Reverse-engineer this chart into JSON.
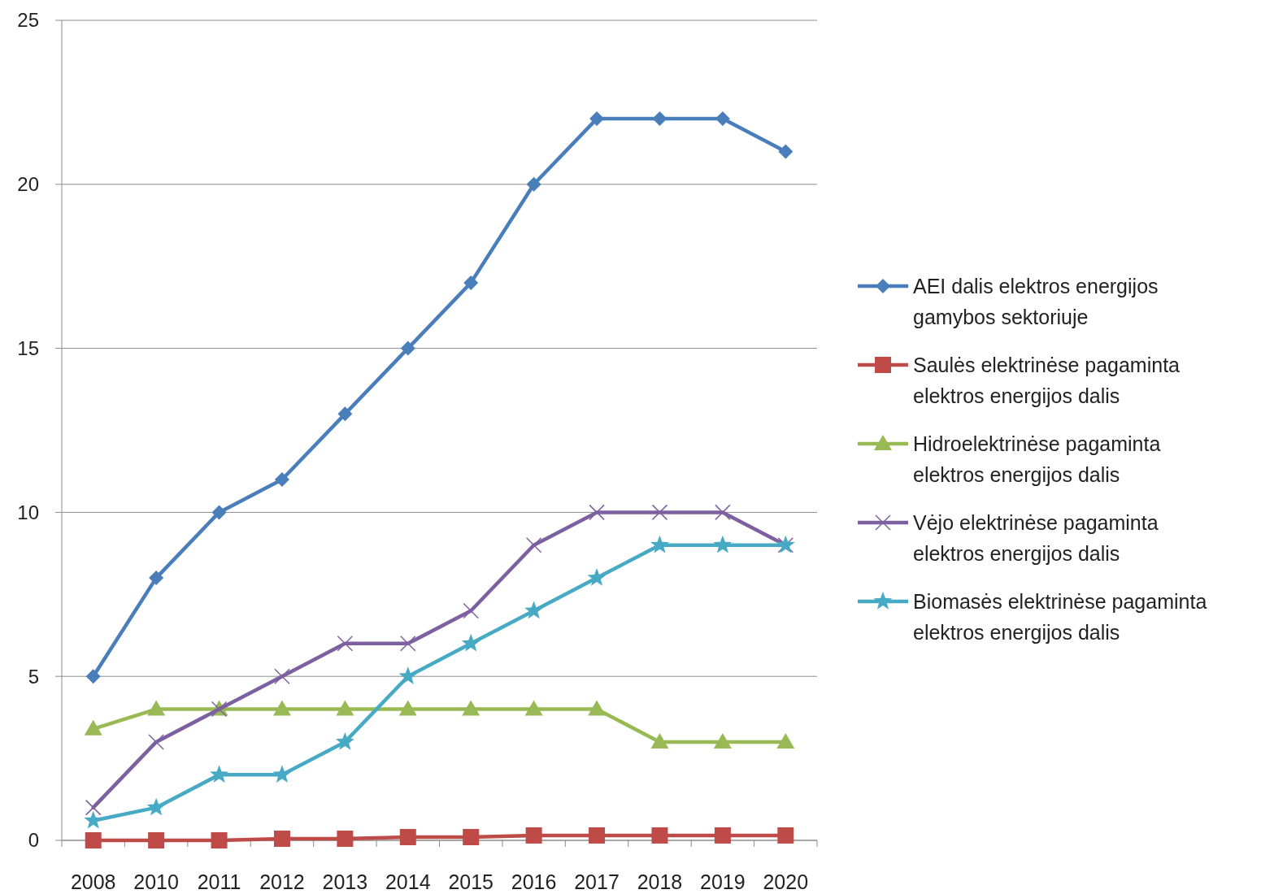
{
  "chart_data": {
    "type": "line",
    "categories": [
      "2008",
      "2010",
      "2011",
      "2012",
      "2013",
      "2014",
      "2015",
      "2016",
      "2017",
      "2018",
      "2019",
      "2020"
    ],
    "ylim": [
      0,
      25
    ],
    "yticks": [
      0,
      5,
      10,
      15,
      20,
      25
    ],
    "grid": "y",
    "legend": "right",
    "line_style": "solid",
    "series": [
      {
        "name": "AEI dalis elektros energijos gamybos sektoriuje",
        "color": "#4a7ebb",
        "marker": "diamond",
        "values": [
          5,
          8,
          10,
          11,
          13,
          15,
          17,
          20,
          22,
          22,
          22,
          21
        ]
      },
      {
        "name": "Saulės elektrinėse pagaminta elektros energijos dalis",
        "color": "#be4b48",
        "marker": "square",
        "values": [
          0,
          0,
          0,
          0.05,
          0.05,
          0.1,
          0.1,
          0.15,
          0.15,
          0.15,
          0.15,
          0.15
        ]
      },
      {
        "name": "Hidroelektrinėse pagaminta elektros energijos dalis",
        "color": "#98b954",
        "marker": "triangle",
        "values": [
          3.4,
          4,
          4,
          4,
          4,
          4,
          4,
          4,
          4,
          3,
          3,
          3
        ]
      },
      {
        "name": "Vėjo elektrinėse pagaminta elektros energijos dalis",
        "color": "#7d60a0",
        "marker": "cross",
        "values": [
          1,
          3,
          4,
          5,
          6,
          6,
          7,
          9,
          10,
          10,
          10,
          9
        ]
      },
      {
        "name": "Biomasės elektrinėse pagaminta elektros energijos dalis",
        "color": "#46aac5",
        "marker": "star",
        "values": [
          0.6,
          1,
          2,
          2,
          3,
          5,
          6,
          7,
          8,
          9,
          9,
          9
        ]
      }
    ]
  }
}
